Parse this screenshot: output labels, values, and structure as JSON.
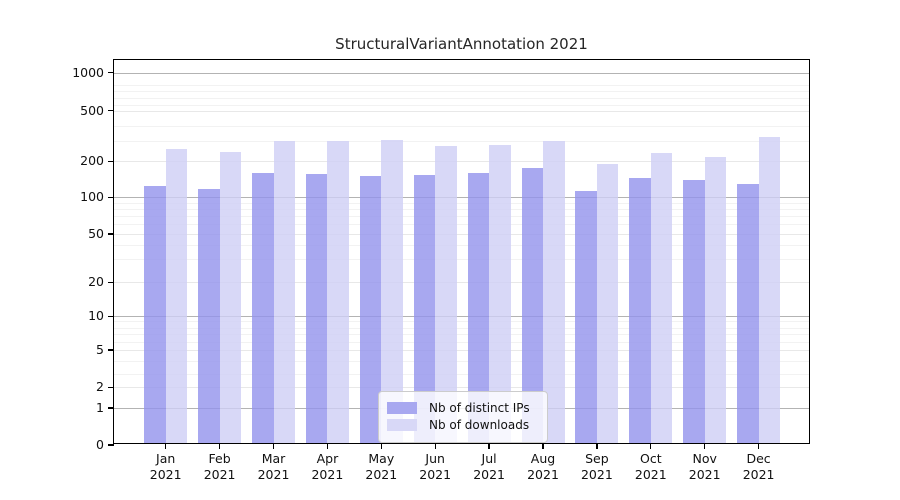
{
  "title": "StructuralVariantAnnotation 2021",
  "chart_data": {
    "type": "bar",
    "categories": [
      "Jan 2021",
      "Feb 2021",
      "Mar 2021",
      "Apr 2021",
      "May 2021",
      "Jun 2021",
      "Jul 2021",
      "Aug 2021",
      "Sep 2021",
      "Oct 2021",
      "Nov 2021",
      "Dec 2021"
    ],
    "series": [
      {
        "name": "Nb of distinct IPs",
        "color": "rgba(146,146,236,0.8)",
        "swatch_hex": "#a8a8f0",
        "values": [
          120,
          114,
          155,
          152,
          145,
          150,
          154,
          172,
          110,
          140,
          136,
          126
        ]
      },
      {
        "name": "Nb of downloads",
        "color": "rgba(206,206,245,0.8)",
        "swatch_hex": "#d8d8f7",
        "values": [
          249,
          231,
          288,
          291,
          292,
          264,
          268,
          288,
          186,
          229,
          210,
          312
        ]
      }
    ],
    "title": "StructuralVariantAnnotation 2021",
    "xlabel": "",
    "ylabel": "",
    "yscale": "log-like (asinh), ticks 0,1,2,5,10,20,50,100,200,500,1000",
    "ytick_labels": [
      "0",
      "1",
      "2",
      "5",
      "10",
      "20",
      "50",
      "100",
      "200",
      "500",
      "1000"
    ],
    "ylim": [
      0,
      1300
    ],
    "grid": true,
    "legend_position": "lower center"
  },
  "legend": {
    "items": [
      "Nb of distinct IPs",
      "Nb of downloads"
    ]
  }
}
